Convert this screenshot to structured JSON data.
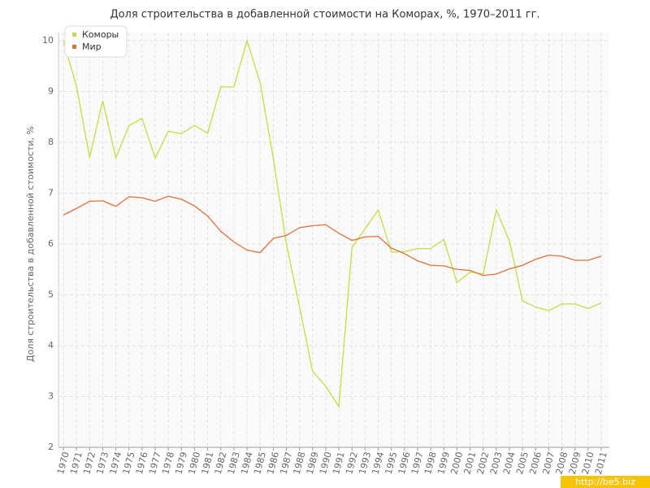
{
  "chart_data": {
    "type": "line",
    "title": "Доля строительства в добавленной стоимости на Коморах, %, 1970–2011 гг.",
    "y_label": "Доля строительства в добавленной стоимости, %",
    "watermark": "http://be5.biz",
    "categories": [
      "1970",
      "1971",
      "1972",
      "1973",
      "1974",
      "1975",
      "1976",
      "1977",
      "1978",
      "1979",
      "1980",
      "1981",
      "1982",
      "1983",
      "1984",
      "1985",
      "1986",
      "1987",
      "1988",
      "1989",
      "1990",
      "1991",
      "1992",
      "1993",
      "1994",
      "1995",
      "1996",
      "1997",
      "1998",
      "1999",
      "2000",
      "2001",
      "2002",
      "2003",
      "2004",
      "2005",
      "2006",
      "2007",
      "2008",
      "2009",
      "2010",
      "2011"
    ],
    "series": [
      {
        "name": "Коморы",
        "color": "#c5dc4a",
        "values": [
          10,
          9.1,
          7.7,
          8.82,
          7.69,
          8.33,
          8.47,
          7.69,
          8.22,
          8.17,
          8.33,
          8.18,
          9.09,
          9.09,
          10,
          9.17,
          7.69,
          6.0,
          4.76,
          3.49,
          3.2,
          2.8,
          5.93,
          6.3,
          6.67,
          5.84,
          5.85,
          5.91,
          5.91,
          6.09,
          5.24,
          5.45,
          5.41,
          6.67,
          6.06,
          4.88,
          4.76,
          4.69,
          4.82,
          4.82,
          4.73,
          4.84
        ]
      },
      {
        "name": "Мир",
        "color": "#e0703c",
        "values": [
          6.57,
          6.7,
          6.84,
          6.85,
          6.74,
          6.93,
          6.91,
          6.84,
          6.94,
          6.88,
          6.75,
          6.55,
          6.25,
          6.04,
          5.88,
          5.83,
          6.11,
          6.17,
          6.32,
          6.36,
          6.38,
          6.21,
          6.07,
          6.14,
          6.15,
          5.92,
          5.81,
          5.67,
          5.58,
          5.57,
          5.5,
          5.48,
          5.38,
          5.41,
          5.51,
          5.58,
          5.7,
          5.78,
          5.76,
          5.68,
          5.68,
          5.76
        ]
      }
    ],
    "ylim": [
      2,
      10
    ],
    "yticks": [
      2,
      3,
      4,
      5,
      6,
      7,
      8,
      9,
      10
    ],
    "grid": true,
    "legend": "top-left"
  }
}
